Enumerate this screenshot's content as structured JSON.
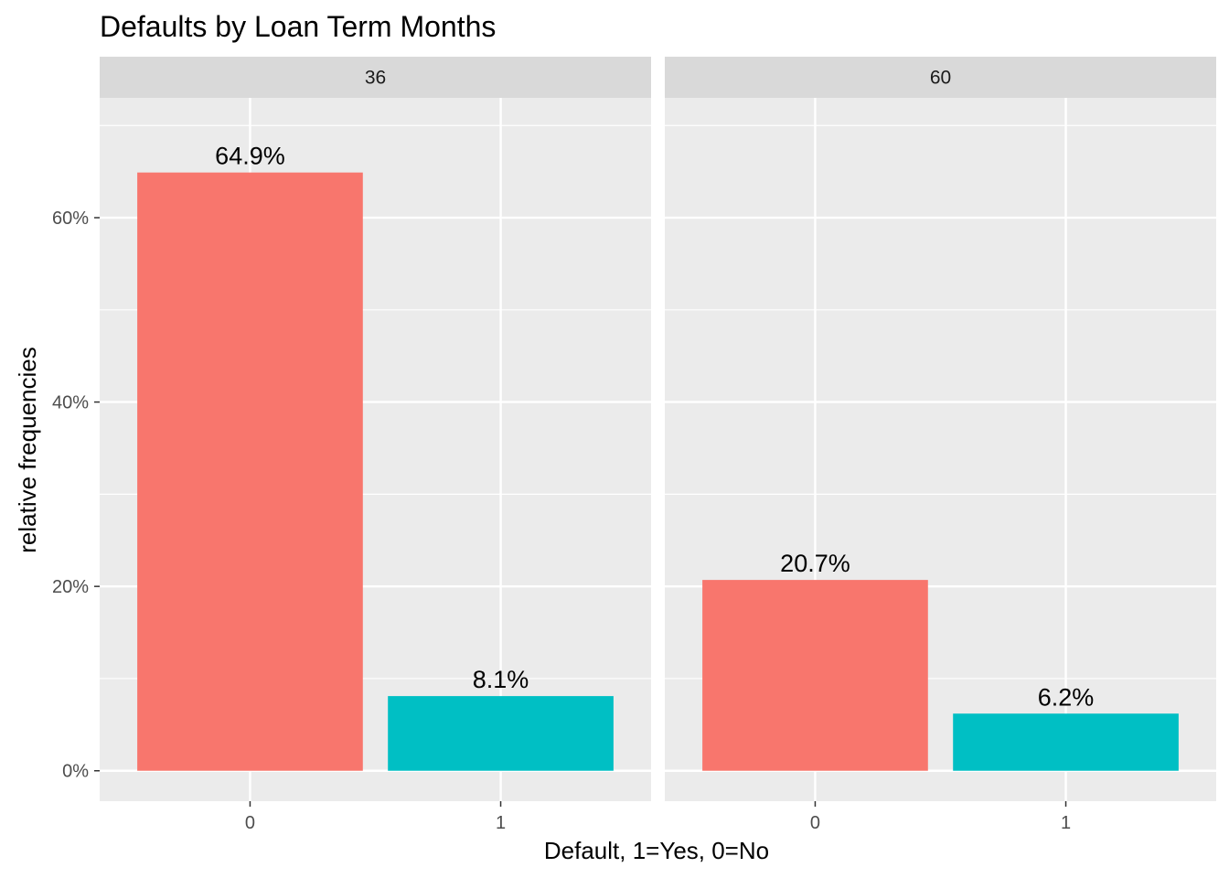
{
  "chart_data": {
    "type": "bar",
    "title": "Defaults by Loan Term Months",
    "xlabel": "Default, 1=Yes, 0=No",
    "ylabel": "relative frequencies",
    "categories": [
      "0",
      "1"
    ],
    "ylim": [
      -0.033,
      0.73
    ],
    "y_ticks": [
      {
        "value": 0,
        "label": "0%"
      },
      {
        "value": 0.2,
        "label": "20%"
      },
      {
        "value": 0.4,
        "label": "40%"
      },
      {
        "value": 0.6,
        "label": "60%"
      }
    ],
    "grid": true,
    "legend": "none",
    "colors": {
      "0": "#F8766D",
      "1": "#00BFC4"
    },
    "facets": [
      {
        "label": "36",
        "values": [
          0.649,
          0.081
        ],
        "value_labels": [
          "64.9%",
          "8.1%"
        ]
      },
      {
        "label": "60",
        "values": [
          0.207,
          0.062
        ],
        "value_labels": [
          "20.7%",
          "6.2%"
        ]
      }
    ]
  }
}
